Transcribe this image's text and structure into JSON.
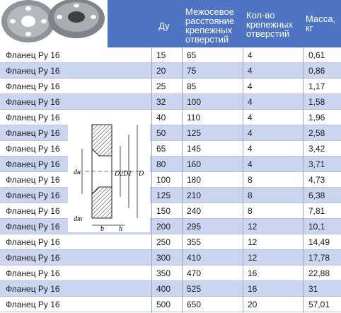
{
  "header": {
    "dy": "Ду",
    "distance": "Межосевое\nрасстояние\nкрепежных\nотверстий",
    "count": "Кол-во\nкрепежных\nотверстий",
    "mass": "Масса,\nкг"
  },
  "drawing_labels": {
    "dn": "dн",
    "d2": "D2",
    "d1": "D1",
    "d": "D",
    "dm": "dm",
    "b": "b",
    "h": "h"
  },
  "rows": [
    {
      "name": "Фланец Ру 16",
      "dy": "15",
      "dist": "65",
      "count": "4",
      "mass": "0,61"
    },
    {
      "name": "Фланец Ру 16",
      "dy": "20",
      "dist": "75",
      "count": "4",
      "mass": "0,86"
    },
    {
      "name": "Фланец Ру 16",
      "dy": "25",
      "dist": "85",
      "count": "4",
      "mass": "1,17"
    },
    {
      "name": "Фланец Ру 16",
      "dy": "32",
      "dist": "100",
      "count": "4",
      "mass": "1,58"
    },
    {
      "name": "Фланец Ру 16",
      "dy": "40",
      "dist": "110",
      "count": "4",
      "mass": "1,96"
    },
    {
      "name": "Фланец Ру 16",
      "dy": "50",
      "dist": "125",
      "count": "4",
      "mass": "2,58"
    },
    {
      "name": "Фланец Ру 16",
      "dy": "65",
      "dist": "145",
      "count": "4",
      "mass": "3,42"
    },
    {
      "name": "Фланец Ру 16",
      "dy": "80",
      "dist": "160",
      "count": "4",
      "mass": "3,71"
    },
    {
      "name": "Фланец Ру 16",
      "dy": "100",
      "dist": "180",
      "count": "8",
      "mass": "4,73"
    },
    {
      "name": "Фланец Ру 16",
      "dy": "125",
      "dist": "210",
      "count": "8",
      "mass": "6,38"
    },
    {
      "name": "Фланец Ру 16",
      "dy": "150",
      "dist": "240",
      "count": "8",
      "mass": "7,81"
    },
    {
      "name": "Фланец Ру 16",
      "dy": "200",
      "dist": "295",
      "count": "12",
      "mass": "10,1"
    },
    {
      "name": "Фланец Ру 16",
      "dy": "250",
      "dist": "355",
      "count": "12",
      "mass": "14,49"
    },
    {
      "name": "Фланец Ру 16",
      "dy": "300",
      "dist": "410",
      "count": "12",
      "mass": "17,78"
    },
    {
      "name": "Фланец Ру 16",
      "dy": "350",
      "dist": "470",
      "count": "16",
      "mass": "22,88"
    },
    {
      "name": "Фланец Ру 16",
      "dy": "400",
      "dist": "525",
      "count": "16",
      "mass": "31"
    },
    {
      "name": "Фланец Ру 16",
      "dy": "500",
      "dist": "650",
      "count": "20",
      "mass": "57,01"
    }
  ]
}
